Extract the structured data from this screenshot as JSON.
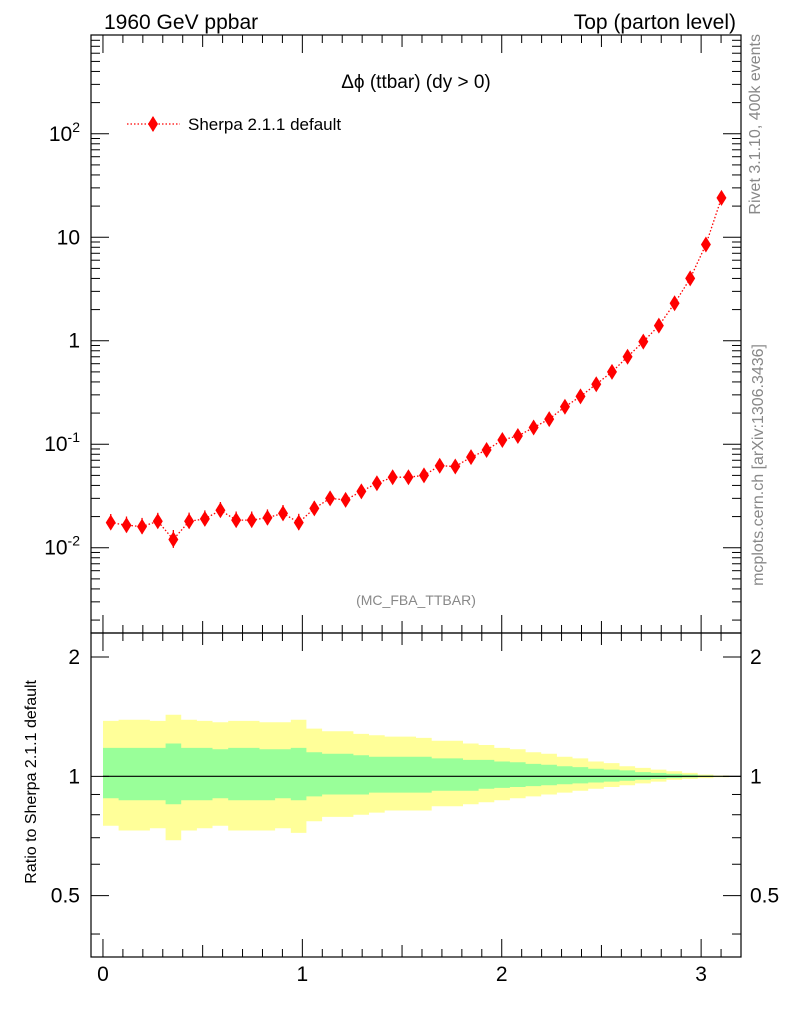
{
  "header": {
    "left": "1960 GeV ppbar",
    "right": "Top (parton level)"
  },
  "side": {
    "rivet": "Rivet 3.1.10,  400k events",
    "mcplots": "mcplots.cern.ch [arXiv:1306.3436]"
  },
  "colors": {
    "series": "#ff0000",
    "band_inner": "#99ff99",
    "band_outer": "#ffff99",
    "watermark": "#888888"
  },
  "chart_data": [
    {
      "type": "scatter",
      "title": "Δϕ (ttbar) (dy > 0)",
      "watermark": "(MC_FBA_TTBAR)",
      "y_scale": "log",
      "xlim": [
        -0.06,
        3.2
      ],
      "ylim": [
        0.0015,
        900
      ],
      "grid": false,
      "legend_position": "top-left",
      "y_tick_labels": [
        "10^-2",
        "10^-1",
        "1",
        "10",
        "10^2"
      ],
      "series": [
        {
          "name": "Sherpa 2.1.1 default",
          "color": "#ff0000",
          "style": "dotted line with diamond markers and error bars",
          "x": [
            0.039,
            0.118,
            0.196,
            0.275,
            0.353,
            0.432,
            0.511,
            0.589,
            0.668,
            0.746,
            0.825,
            0.903,
            0.982,
            1.06,
            1.139,
            1.217,
            1.296,
            1.374,
            1.453,
            1.532,
            1.61,
            1.689,
            1.767,
            1.846,
            1.924,
            2.003,
            2.081,
            2.16,
            2.238,
            2.317,
            2.395,
            2.474,
            2.553,
            2.631,
            2.71,
            2.788,
            2.867,
            2.945,
            3.024,
            3.102
          ],
          "y": [
            0.0175,
            0.0165,
            0.016,
            0.018,
            0.012,
            0.018,
            0.019,
            0.023,
            0.0185,
            0.0185,
            0.0195,
            0.0215,
            0.0175,
            0.024,
            0.03,
            0.029,
            0.035,
            0.042,
            0.048,
            0.048,
            0.05,
            0.062,
            0.061,
            0.075,
            0.088,
            0.11,
            0.12,
            0.145,
            0.175,
            0.23,
            0.29,
            0.38,
            0.5,
            0.7,
            0.98,
            1.4,
            2.3,
            4.0,
            8.5,
            24
          ]
        }
      ]
    },
    {
      "type": "area",
      "ylabel": "Ratio to Sherpa 2.1.1 default",
      "xlim": [
        -0.06,
        3.2
      ],
      "ylim": [
        0.35,
        2.3
      ],
      "x_tick_labels": [
        "0",
        "1",
        "2",
        "3"
      ],
      "y_tick_labels": [
        "0.5",
        "1",
        "2"
      ],
      "reference_line": 1,
      "bin_edges": [
        0.0,
        0.0785,
        0.157,
        0.2355,
        0.314,
        0.3925,
        0.471,
        0.5495,
        0.628,
        0.7065,
        0.785,
        0.8635,
        0.942,
        1.0205,
        1.099,
        1.1775,
        1.256,
        1.3345,
        1.413,
        1.4915,
        1.57,
        1.6485,
        1.727,
        1.8055,
        1.884,
        1.9625,
        2.041,
        2.1195,
        2.198,
        2.2765,
        2.355,
        2.4335,
        2.512,
        2.5905,
        2.669,
        2.7475,
        2.826,
        2.9045,
        2.983,
        3.0615,
        3.14
      ],
      "series": [
        {
          "name": "",
          "color": "#ffff99",
          "lower": [
            0.75,
            0.73,
            0.73,
            0.74,
            0.69,
            0.73,
            0.74,
            0.75,
            0.73,
            0.73,
            0.73,
            0.74,
            0.72,
            0.77,
            0.79,
            0.79,
            0.8,
            0.81,
            0.82,
            0.82,
            0.82,
            0.84,
            0.84,
            0.85,
            0.86,
            0.87,
            0.88,
            0.89,
            0.9,
            0.91,
            0.92,
            0.93,
            0.94,
            0.95,
            0.96,
            0.97,
            0.98,
            0.985,
            0.99,
            0.995
          ],
          "upper": [
            1.38,
            1.39,
            1.39,
            1.38,
            1.43,
            1.39,
            1.38,
            1.37,
            1.38,
            1.38,
            1.37,
            1.37,
            1.39,
            1.32,
            1.3,
            1.3,
            1.28,
            1.27,
            1.26,
            1.26,
            1.25,
            1.23,
            1.23,
            1.21,
            1.2,
            1.18,
            1.17,
            1.15,
            1.14,
            1.12,
            1.11,
            1.09,
            1.08,
            1.06,
            1.05,
            1.04,
            1.03,
            1.02,
            1.01,
            1.005
          ]
        },
        {
          "name": "",
          "color": "#99ff99",
          "lower": [
            0.88,
            0.87,
            0.87,
            0.87,
            0.85,
            0.87,
            0.87,
            0.88,
            0.87,
            0.87,
            0.87,
            0.88,
            0.87,
            0.89,
            0.9,
            0.9,
            0.9,
            0.91,
            0.91,
            0.91,
            0.91,
            0.92,
            0.92,
            0.92,
            0.93,
            0.935,
            0.94,
            0.945,
            0.95,
            0.955,
            0.96,
            0.965,
            0.97,
            0.975,
            0.98,
            0.985,
            0.99,
            0.993,
            0.996,
            0.998
          ],
          "upper": [
            1.18,
            1.18,
            1.18,
            1.18,
            1.21,
            1.18,
            1.18,
            1.17,
            1.18,
            1.18,
            1.17,
            1.17,
            1.18,
            1.15,
            1.14,
            1.14,
            1.13,
            1.12,
            1.12,
            1.12,
            1.12,
            1.11,
            1.11,
            1.1,
            1.1,
            1.09,
            1.085,
            1.075,
            1.07,
            1.06,
            1.055,
            1.045,
            1.04,
            1.035,
            1.025,
            1.02,
            1.015,
            1.01,
            1.005,
            1.002
          ]
        }
      ]
    }
  ]
}
